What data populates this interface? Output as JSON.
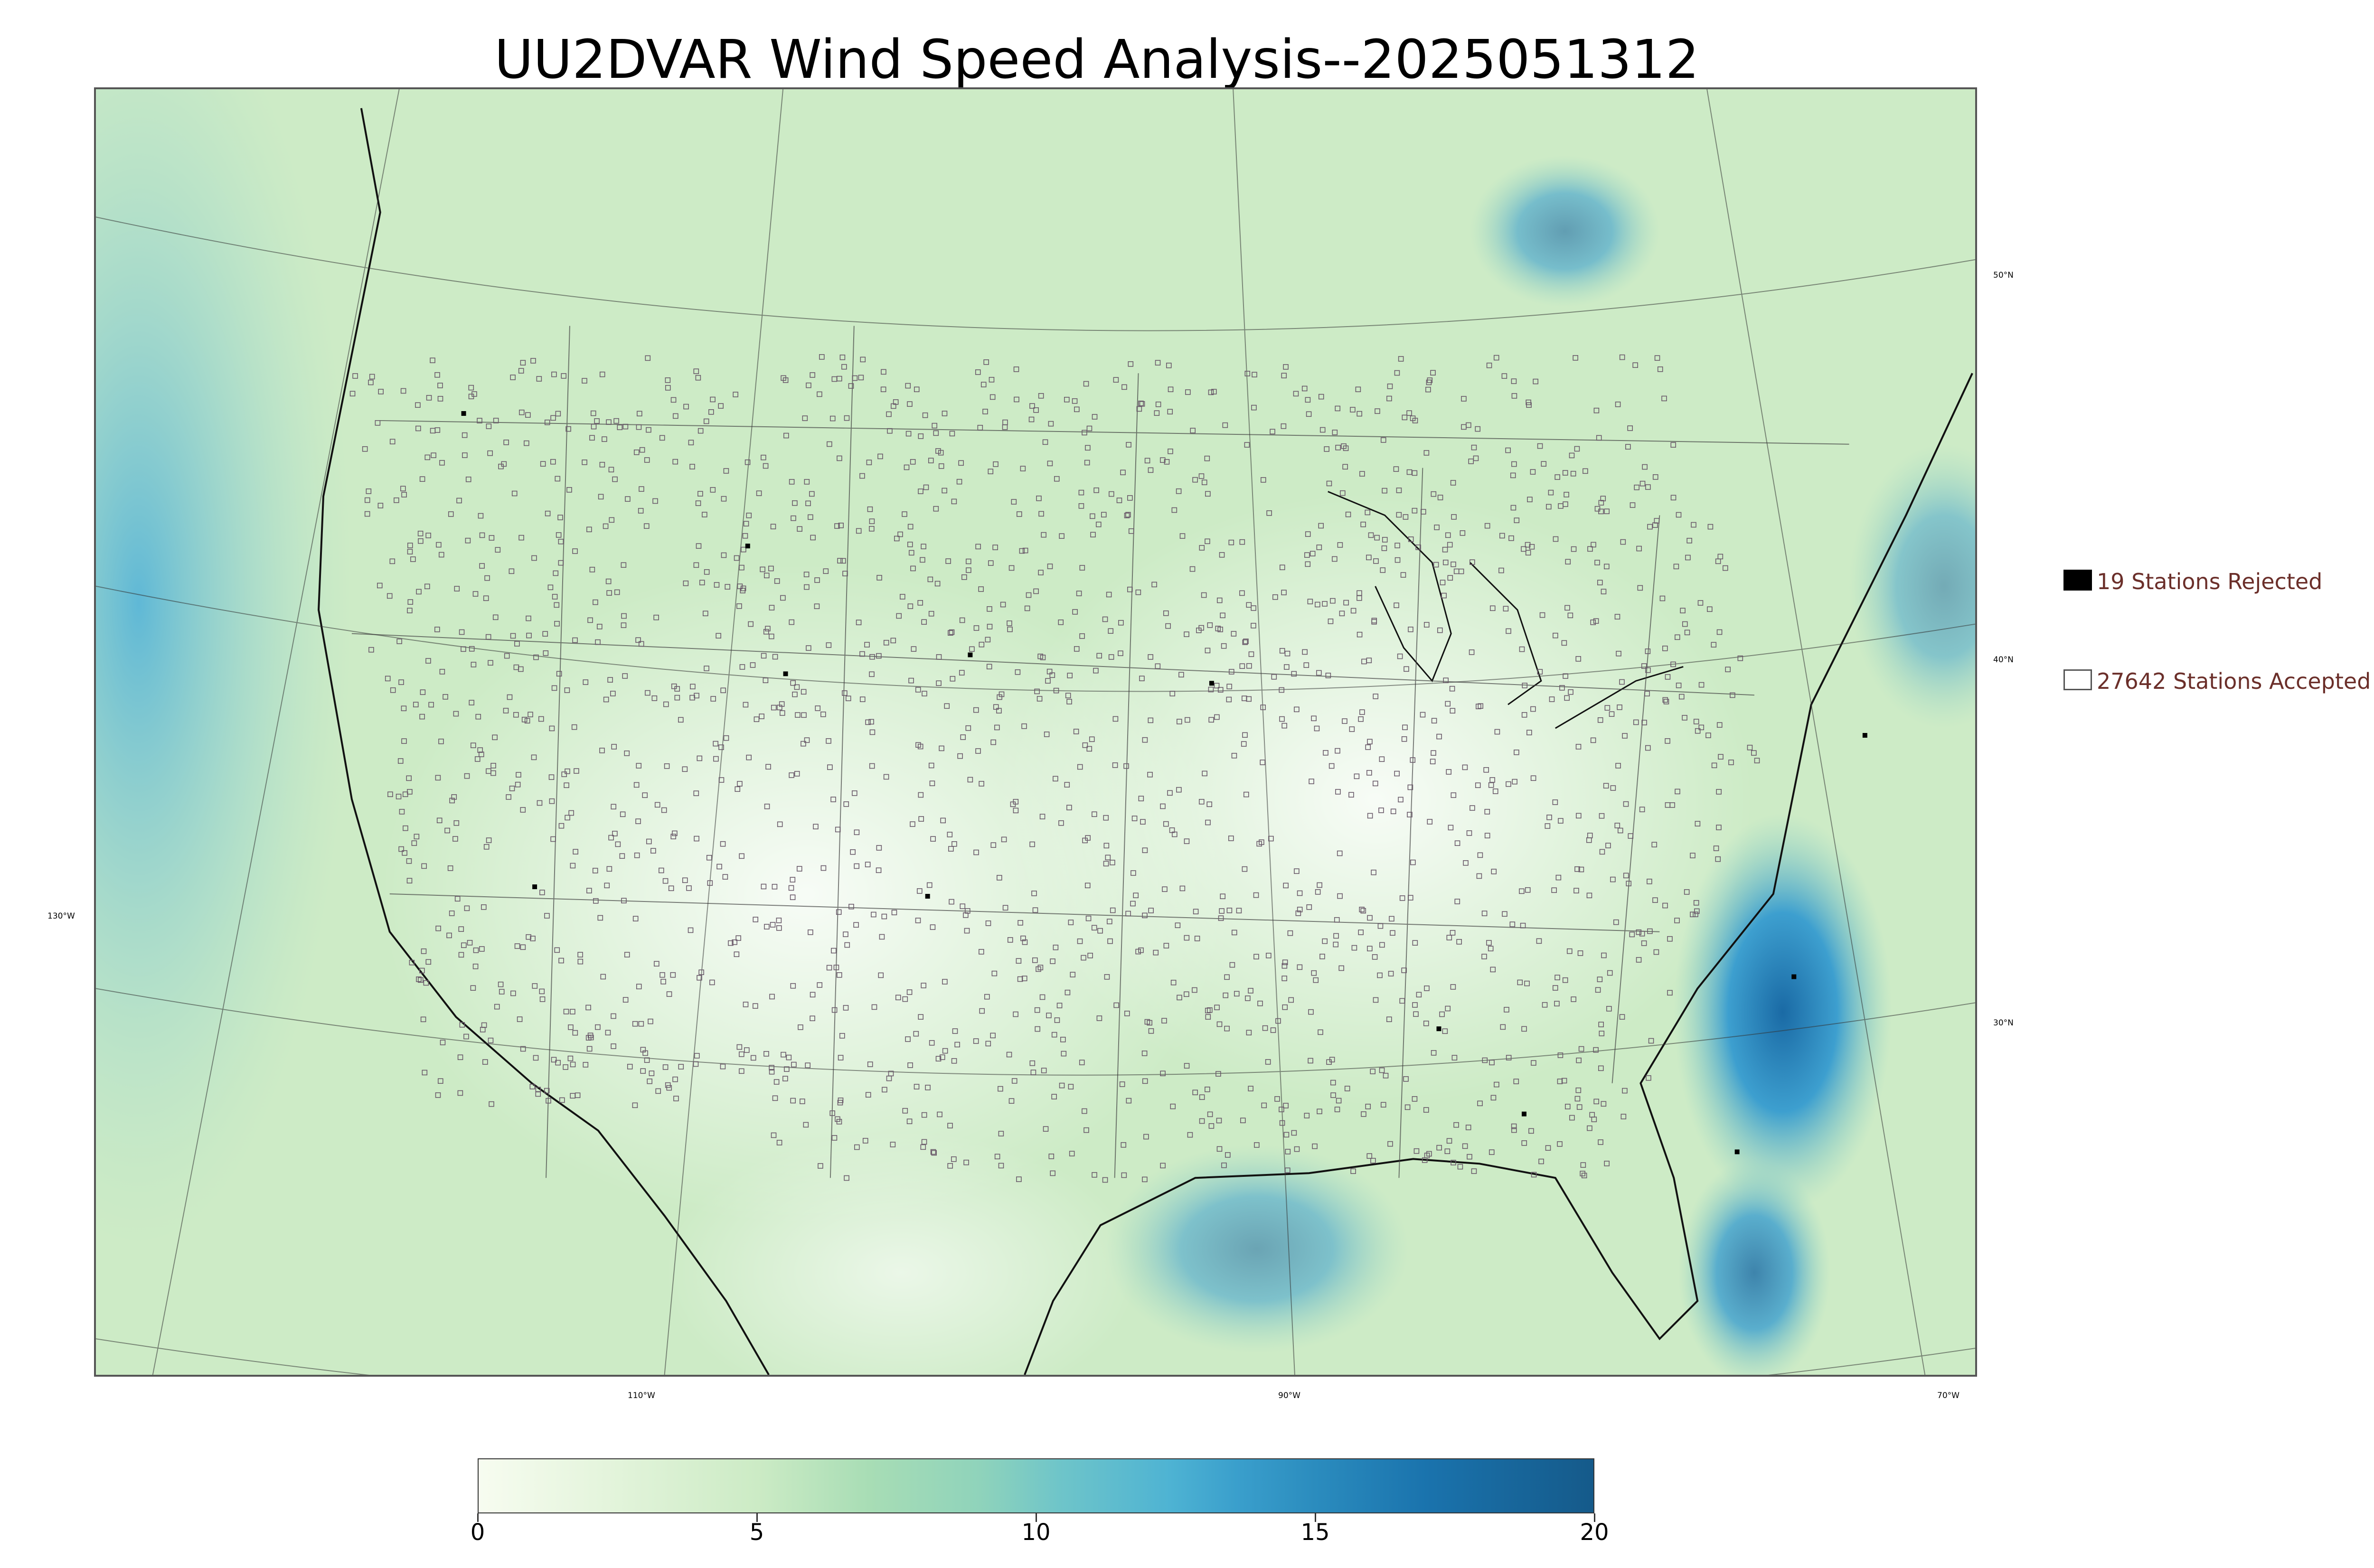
{
  "title": "UU2DVAR Wind Speed Analysis--2025051312",
  "map": {
    "latitude_labels": [
      "50°N",
      "40°N",
      "30°N"
    ],
    "longitude_labels": [
      "130°W",
      "110°W",
      "90°W",
      "70°W"
    ]
  },
  "legend": {
    "rejected": {
      "label": "19 Stations Rejected",
      "color": "#000000"
    },
    "accepted": {
      "label": "27642 Stations Accepted",
      "color": "#ffffff"
    }
  },
  "colorbar": {
    "min": 0,
    "max": 20,
    "ticks": [
      "0",
      "5",
      "10",
      "15",
      "20"
    ],
    "colors": [
      "#f7fcf0",
      "#ccebc5",
      "#a8ddb5",
      "#7bccc4",
      "#4eb3d3",
      "#2b8cbe",
      "#155a8a"
    ]
  }
}
